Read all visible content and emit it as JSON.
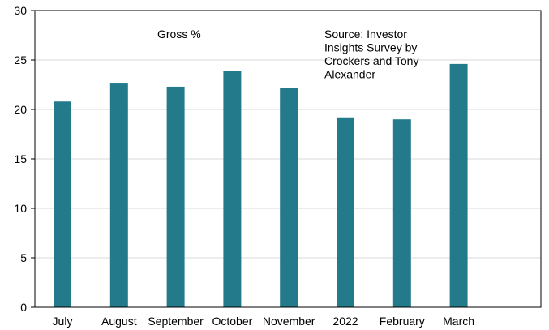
{
  "chart_data": {
    "type": "bar",
    "categories": [
      "July",
      "August",
      "September",
      "October",
      "November",
      "2022",
      "February",
      "March"
    ],
    "values": [
      20.8,
      22.7,
      22.3,
      23.9,
      22.2,
      19.2,
      19.0,
      24.6
    ],
    "ylim": [
      0,
      30
    ],
    "yticks": [
      0,
      5,
      10,
      15,
      20,
      25,
      30
    ],
    "ytick_labels": [
      "0",
      "5",
      "10",
      "15",
      "20",
      "25",
      "30"
    ],
    "grid": true,
    "legend": "none",
    "colors": {
      "bar": "#237A8B",
      "grid": "#D9D9D9",
      "axis": "#000000"
    },
    "annotations": {
      "series_label": "Gross %",
      "source_lines": [
        "Source: Investor",
        "Insights Survey by",
        "Crockers and Tony",
        "Alexander"
      ]
    }
  }
}
